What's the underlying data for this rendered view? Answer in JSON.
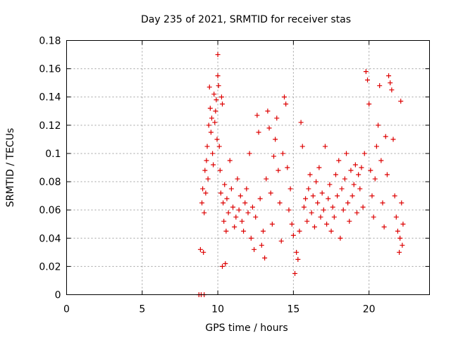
{
  "chart_data": {
    "type": "scatter",
    "title": "Day 235 of 2021, SRMTID for receiver stas",
    "xlabel": "GPS time / hours",
    "ylabel": "SRMTID / TECUs",
    "xlim": [
      0,
      24
    ],
    "ylim": [
      0,
      0.18
    ],
    "xticks": [
      0,
      5,
      10,
      15,
      20
    ],
    "xtick_labels": [
      "0",
      "5",
      "10",
      "15",
      "20"
    ],
    "yticks": [
      0,
      0.02,
      0.04,
      0.06,
      0.08,
      0.1,
      0.12,
      0.14,
      0.16,
      0.18
    ],
    "ytick_labels": [
      "0",
      "0.02",
      "0.04",
      "0.06",
      "0.08",
      "0.1",
      "0.12",
      "0.14",
      "0.16",
      "0.18"
    ],
    "grid": true,
    "legend": "none",
    "marker": "plus",
    "color": "#dd0000",
    "series": [
      {
        "name": "SRMTID",
        "points": [
          [
            8.75,
            0.0
          ],
          [
            8.9,
            0.0
          ],
          [
            9.1,
            0.0
          ],
          [
            8.85,
            0.032
          ],
          [
            9.05,
            0.03
          ],
          [
            8.95,
            0.065
          ],
          [
            9.1,
            0.058
          ],
          [
            9.0,
            0.075
          ],
          [
            9.2,
            0.072
          ],
          [
            9.15,
            0.088
          ],
          [
            9.25,
            0.095
          ],
          [
            9.3,
            0.105
          ],
          [
            9.35,
            0.082
          ],
          [
            9.4,
            0.12
          ],
          [
            9.45,
            0.147
          ],
          [
            9.5,
            0.132
          ],
          [
            9.55,
            0.115
          ],
          [
            9.6,
            0.125
          ],
          [
            9.65,
            0.1
          ],
          [
            9.7,
            0.092
          ],
          [
            9.75,
            0.142
          ],
          [
            9.8,
            0.122
          ],
          [
            9.85,
            0.13
          ],
          [
            9.9,
            0.138
          ],
          [
            9.95,
            0.11
          ],
          [
            10.0,
            0.17
          ],
          [
            10.0,
            0.155
          ],
          [
            10.05,
            0.148
          ],
          [
            10.1,
            0.105
          ],
          [
            10.15,
            0.088
          ],
          [
            10.2,
            0.072
          ],
          [
            10.25,
            0.14
          ],
          [
            10.3,
            0.135
          ],
          [
            10.35,
            0.065
          ],
          [
            10.4,
            0.052
          ],
          [
            10.45,
            0.078
          ],
          [
            10.5,
            0.022
          ],
          [
            10.55,
            0.045
          ],
          [
            10.3,
            0.02
          ],
          [
            10.6,
            0.068
          ],
          [
            10.7,
            0.058
          ],
          [
            10.8,
            0.095
          ],
          [
            10.9,
            0.075
          ],
          [
            11.0,
            0.062
          ],
          [
            11.1,
            0.048
          ],
          [
            11.2,
            0.055
          ],
          [
            11.3,
            0.082
          ],
          [
            11.4,
            0.06
          ],
          [
            11.5,
            0.07
          ],
          [
            11.6,
            0.052
          ],
          [
            11.7,
            0.045
          ],
          [
            11.8,
            0.065
          ],
          [
            11.9,
            0.075
          ],
          [
            12.0,
            0.058
          ],
          [
            12.1,
            0.1
          ],
          [
            12.2,
            0.04
          ],
          [
            12.3,
            0.062
          ],
          [
            12.4,
            0.032
          ],
          [
            12.5,
            0.055
          ],
          [
            12.6,
            0.127
          ],
          [
            12.7,
            0.115
          ],
          [
            12.8,
            0.068
          ],
          [
            12.9,
            0.035
          ],
          [
            13.0,
            0.045
          ],
          [
            13.1,
            0.026
          ],
          [
            13.2,
            0.082
          ],
          [
            13.3,
            0.13
          ],
          [
            13.4,
            0.118
          ],
          [
            13.5,
            0.072
          ],
          [
            13.6,
            0.05
          ],
          [
            13.7,
            0.098
          ],
          [
            13.8,
            0.11
          ],
          [
            13.9,
            0.125
          ],
          [
            14.0,
            0.088
          ],
          [
            14.1,
            0.065
          ],
          [
            14.2,
            0.038
          ],
          [
            14.3,
            0.1
          ],
          [
            14.4,
            0.14
          ],
          [
            14.5,
            0.135
          ],
          [
            14.6,
            0.09
          ],
          [
            14.7,
            0.06
          ],
          [
            14.8,
            0.075
          ],
          [
            14.9,
            0.05
          ],
          [
            15.0,
            0.042
          ],
          [
            15.1,
            0.015
          ],
          [
            15.2,
            0.03
          ],
          [
            15.3,
            0.025
          ],
          [
            15.4,
            0.045
          ],
          [
            15.5,
            0.122
          ],
          [
            15.6,
            0.105
          ],
          [
            15.7,
            0.062
          ],
          [
            15.8,
            0.068
          ],
          [
            15.9,
            0.052
          ],
          [
            16.0,
            0.075
          ],
          [
            16.1,
            0.085
          ],
          [
            16.2,
            0.058
          ],
          [
            16.3,
            0.07
          ],
          [
            16.4,
            0.048
          ],
          [
            16.5,
            0.08
          ],
          [
            16.6,
            0.065
          ],
          [
            16.7,
            0.09
          ],
          [
            16.8,
            0.055
          ],
          [
            16.9,
            0.072
          ],
          [
            17.0,
            0.06
          ],
          [
            17.1,
            0.105
          ],
          [
            17.2,
            0.05
          ],
          [
            17.3,
            0.068
          ],
          [
            17.4,
            0.078
          ],
          [
            17.5,
            0.045
          ],
          [
            17.6,
            0.062
          ],
          [
            17.7,
            0.055
          ],
          [
            17.8,
            0.085
          ],
          [
            17.9,
            0.07
          ],
          [
            18.0,
            0.095
          ],
          [
            18.1,
            0.04
          ],
          [
            18.2,
            0.075
          ],
          [
            18.3,
            0.06
          ],
          [
            18.4,
            0.082
          ],
          [
            18.5,
            0.1
          ],
          [
            18.6,
            0.065
          ],
          [
            18.7,
            0.052
          ],
          [
            18.8,
            0.088
          ],
          [
            18.9,
            0.07
          ],
          [
            19.0,
            0.078
          ],
          [
            19.1,
            0.092
          ],
          [
            19.2,
            0.058
          ],
          [
            19.3,
            0.085
          ],
          [
            19.4,
            0.075
          ],
          [
            19.5,
            0.09
          ],
          [
            19.6,
            0.062
          ],
          [
            19.7,
            0.1
          ],
          [
            19.8,
            0.158
          ],
          [
            19.9,
            0.152
          ],
          [
            20.0,
            0.135
          ],
          [
            20.1,
            0.088
          ],
          [
            20.2,
            0.07
          ],
          [
            20.3,
            0.055
          ],
          [
            20.4,
            0.082
          ],
          [
            20.5,
            0.105
          ],
          [
            20.6,
            0.12
          ],
          [
            20.7,
            0.148
          ],
          [
            20.8,
            0.095
          ],
          [
            20.9,
            0.065
          ],
          [
            21.0,
            0.048
          ],
          [
            21.1,
            0.112
          ],
          [
            21.2,
            0.085
          ],
          [
            21.3,
            0.155
          ],
          [
            21.4,
            0.15
          ],
          [
            21.5,
            0.145
          ],
          [
            21.6,
            0.11
          ],
          [
            21.7,
            0.07
          ],
          [
            21.8,
            0.055
          ],
          [
            21.9,
            0.045
          ],
          [
            22.0,
            0.03
          ],
          [
            22.05,
            0.04
          ],
          [
            22.1,
            0.137
          ],
          [
            22.15,
            0.065
          ],
          [
            22.2,
            0.035
          ],
          [
            22.25,
            0.05
          ]
        ]
      }
    ]
  }
}
